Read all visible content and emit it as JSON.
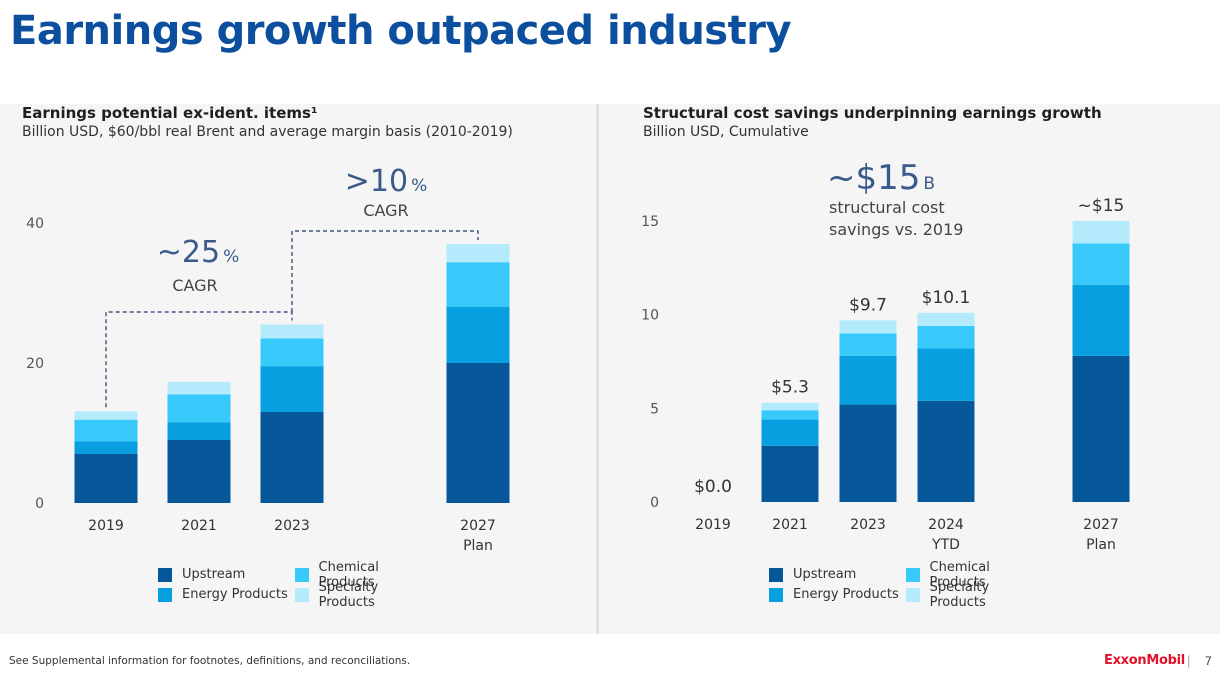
{
  "page": {
    "title": "Earnings growth outpaced industry",
    "footnote": "See Supplemental information for footnotes, definitions, and reconciliations.",
    "brand": "ExxonMobil",
    "page_number": "7"
  },
  "colors": {
    "upstream": "#06569a",
    "energy_products": "#079fe0",
    "chemical_products": "#38c9fb",
    "specialty_products": "#b3ebfc",
    "title_blue": "#0c4f9e"
  },
  "left": {
    "title": "Earnings potential ex-ident. items¹",
    "subtitle": "Billion USD, $60/bbl real Brent and average margin basis (2010-2019)",
    "callouts": [
      {
        "big": "~25",
        "unit": "%",
        "label": "CAGR"
      },
      {
        "big": ">10",
        "unit": "%",
        "label": "CAGR"
      }
    ]
  },
  "right": {
    "title": "Structural cost savings underpinning earnings growth",
    "subtitle": "Billion USD, Cumulative",
    "callout": {
      "big": "~$15",
      "unit": "B",
      "line1": "structural cost",
      "line2": "savings vs. 2019"
    }
  },
  "legend": [
    {
      "name": "Upstream",
      "color": "#06569a"
    },
    {
      "name": "Chemical Products",
      "color": "#38c9fb"
    },
    {
      "name": "Energy Products",
      "color": "#079fe0"
    },
    {
      "name": "Specialty Products",
      "color": "#b3ebfc"
    }
  ],
  "chart_data": [
    {
      "type": "bar",
      "stacked": true,
      "categories": [
        "2019",
        "2021",
        "2023",
        "2027\nPlan"
      ],
      "series": [
        {
          "name": "Upstream",
          "values": [
            7.0,
            9.0,
            13.0,
            20.0
          ]
        },
        {
          "name": "Energy Products",
          "values": [
            1.8,
            2.5,
            6.5,
            8.0
          ]
        },
        {
          "name": "Chemical Products",
          "values": [
            3.1,
            4.0,
            4.0,
            6.4
          ]
        },
        {
          "name": "Specialty Products",
          "values": [
            1.2,
            1.8,
            2.0,
            2.6
          ]
        }
      ],
      "ylim": [
        0,
        40
      ],
      "yticks": [
        0,
        20,
        40
      ],
      "legend": "bottom",
      "grid": false,
      "annotations": [
        {
          "text": "~25% CAGR",
          "from": "2019",
          "to": "2023"
        },
        {
          "text": ">10% CAGR",
          "from": "2023",
          "to": "2027\nPlan"
        }
      ]
    },
    {
      "type": "bar",
      "stacked": true,
      "categories": [
        "2019",
        "2021",
        "2023",
        "2024\nYTD",
        "2027\nPlan"
      ],
      "series": [
        {
          "name": "Upstream",
          "values": [
            0,
            3.0,
            5.2,
            5.4,
            7.8
          ]
        },
        {
          "name": "Energy Products",
          "values": [
            0,
            1.4,
            2.6,
            2.8,
            3.8
          ]
        },
        {
          "name": "Chemical Products",
          "values": [
            0,
            0.5,
            1.2,
            1.2,
            2.2
          ]
        },
        {
          "name": "Specialty Products",
          "values": [
            0,
            0.4,
            0.7,
            0.7,
            1.2
          ]
        }
      ],
      "totals": [
        "$0.0",
        "$5.3",
        "$9.7",
        "$10.1",
        "~$15"
      ],
      "ylim": [
        0,
        15
      ],
      "yticks": [
        0,
        5,
        10,
        15
      ],
      "legend": "bottom",
      "grid": false
    }
  ]
}
